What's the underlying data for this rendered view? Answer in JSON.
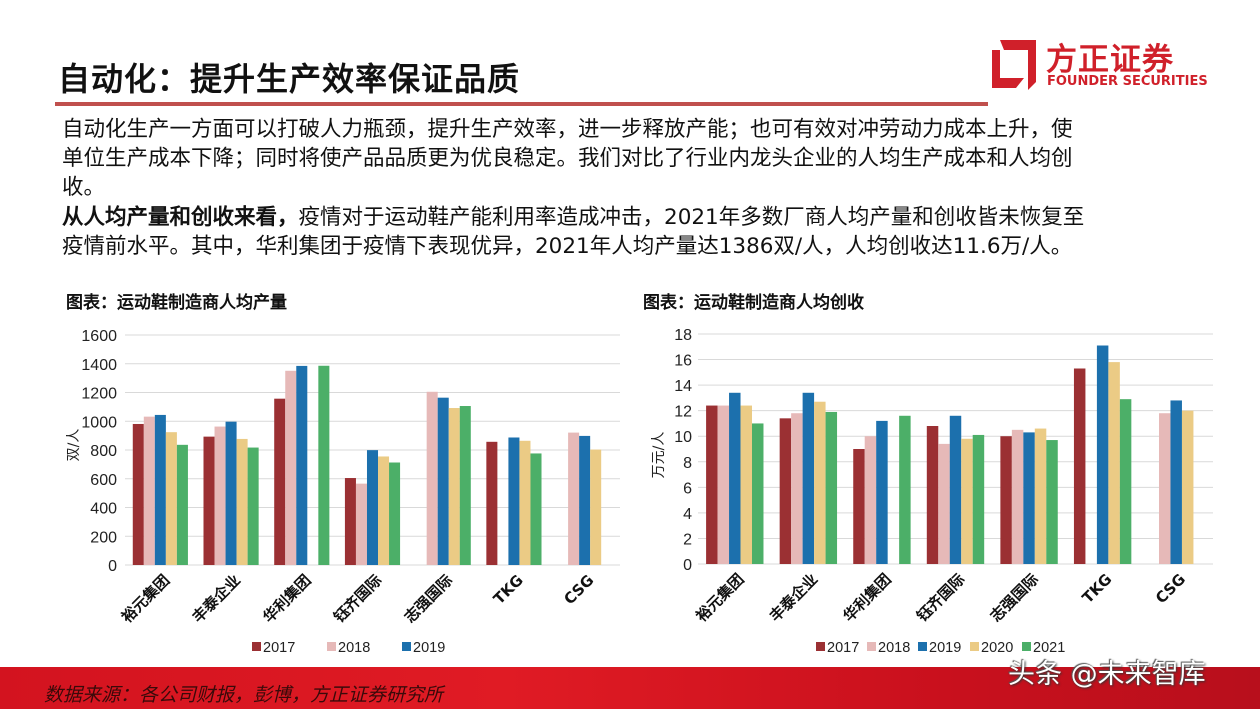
{
  "header": {
    "title": "自动化：提升生产效率保证品质",
    "logo_cn": "方正证券",
    "logo_en": "FOUNDER SECURITIES",
    "accent_color": "#d0202a"
  },
  "body": {
    "para1_lines": [
      "自动化生产一方面可以打破人力瓶颈，提升生产效率，进一步释放产能；也可有效对冲劳动力成本上升，使",
      "单位生产成本下降；同时将使产品品质更为优良稳定。我们对比了行业内龙头企业的人均生产成本和人均创",
      "收。"
    ],
    "para2_bold": "从人均产量和创收来看，",
    "para2_line1_rest": "疫情对于运动鞋产能利用率造成冲击，2021年多数厂商人均产量和创收皆未恢复至",
    "para2_line2": "疫情前水平。其中，华利集团于疫情下表现优异，2021年人均产量达1386双/人，人均创收达11.6万/人。"
  },
  "footer": {
    "source": "数据来源：各公司财报，彭博，方正证券研究所",
    "watermark": "头条 @未来智库"
  },
  "series_colors": {
    "2017": "#9b3033",
    "2018": "#e6b9b8",
    "2019": "#1c70ad",
    "2020": "#ebcb85",
    "2021": "#4caf68"
  },
  "chart_data": [
    {
      "type": "bar",
      "title": "图表：运动鞋制造商人均产量",
      "ylabel": "双/人",
      "xlabel": "",
      "ylim": [
        0,
        1600
      ],
      "yticks": [
        0,
        200,
        400,
        600,
        800,
        1000,
        1200,
        1400,
        1600
      ],
      "grid": true,
      "legend_position": "bottom",
      "legend_entries": [
        "2017",
        "2018",
        "2019"
      ],
      "categories": [
        "裕元集团",
        "丰泰企业",
        "华利集团",
        "钰齐国际",
        "志强国际",
        "TKG",
        "CSG"
      ],
      "series": [
        {
          "name": "2017",
          "values": [
            981,
            893,
            1157,
            605,
            null,
            857,
            null
          ]
        },
        {
          "name": "2018",
          "values": [
            1032,
            963,
            1351,
            566,
            1205,
            null,
            921
          ]
        },
        {
          "name": "2019",
          "values": [
            1044,
            997,
            1385,
            799,
            1164,
            887,
            898
          ]
        },
        {
          "values": [
            924,
            877,
            null,
            755,
            1092,
            864,
            803
          ]
        },
        {
          "values": [
            836,
            817,
            1386,
            713,
            1106,
            776,
            null
          ]
        }
      ]
    },
    {
      "type": "bar",
      "title": "图表：运动鞋制造商人均创收",
      "ylabel": "万元/人",
      "xlabel": "",
      "ylim": [
        0,
        18
      ],
      "yticks": [
        0,
        2,
        4,
        6,
        8,
        10,
        12,
        14,
        16,
        18
      ],
      "grid": true,
      "legend_position": "bottom",
      "legend_entries": [
        "2017",
        "2018",
        "2019",
        "2020",
        "2021"
      ],
      "categories": [
        "裕元集团",
        "丰泰企业",
        "华利集团",
        "钰齐国际",
        "志强国际",
        "TKG",
        "CSG"
      ],
      "series": [
        {
          "name": "2017",
          "values": [
            12.4,
            11.4,
            9.0,
            10.8,
            10.0,
            15.3,
            null
          ]
        },
        {
          "name": "2018",
          "values": [
            12.4,
            11.8,
            10.0,
            9.4,
            10.5,
            null,
            11.8
          ]
        },
        {
          "name": "2019",
          "values": [
            13.4,
            13.4,
            11.2,
            11.6,
            10.3,
            17.1,
            12.8
          ]
        },
        {
          "name": "2020",
          "values": [
            12.4,
            12.7,
            null,
            9.8,
            10.6,
            15.8,
            12.0
          ]
        },
        {
          "name": "2021",
          "values": [
            11.0,
            11.9,
            11.6,
            10.1,
            9.7,
            12.9,
            null
          ]
        }
      ]
    }
  ]
}
